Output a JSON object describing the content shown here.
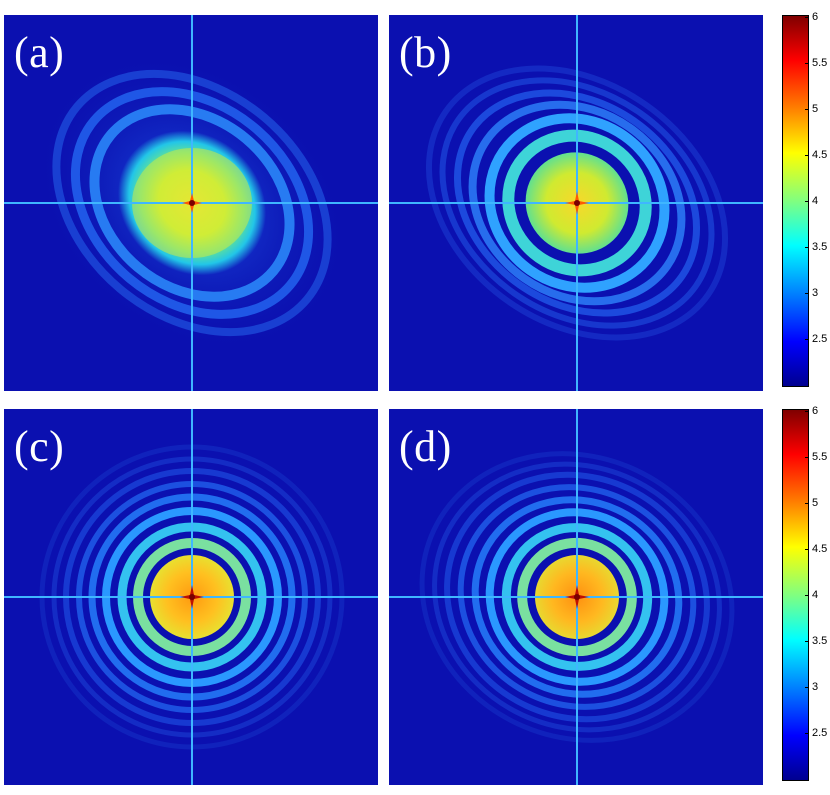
{
  "panels": [
    {
      "label": "(a)",
      "pattern": "broad-blob",
      "lobe_angle_deg": 40
    },
    {
      "label": "(b)",
      "pattern": "rings-few",
      "lobe_angle_deg": 35
    },
    {
      "label": "(c)",
      "pattern": "rings-many",
      "lobe_angle_deg": 0
    },
    {
      "label": "(d)",
      "pattern": "rings-many-tilted",
      "lobe_angle_deg": 25
    }
  ],
  "colorbar_top": {
    "min": 2.0,
    "max": 6.0,
    "ticks": [
      "6",
      "5.5",
      "5",
      "4.5",
      "4",
      "3.5",
      "3",
      "2.5"
    ]
  },
  "colorbar_bottom": {
    "min": 2.0,
    "max": 6.0,
    "ticks": [
      "6",
      "5.5",
      "5",
      "4.5",
      "4",
      "3.5",
      "3",
      "2.5"
    ]
  },
  "colormap": "jet",
  "colors": {
    "background": "#0b10b0",
    "crosshair": "#3fb6ff",
    "center_spot": "#7a0000"
  }
}
